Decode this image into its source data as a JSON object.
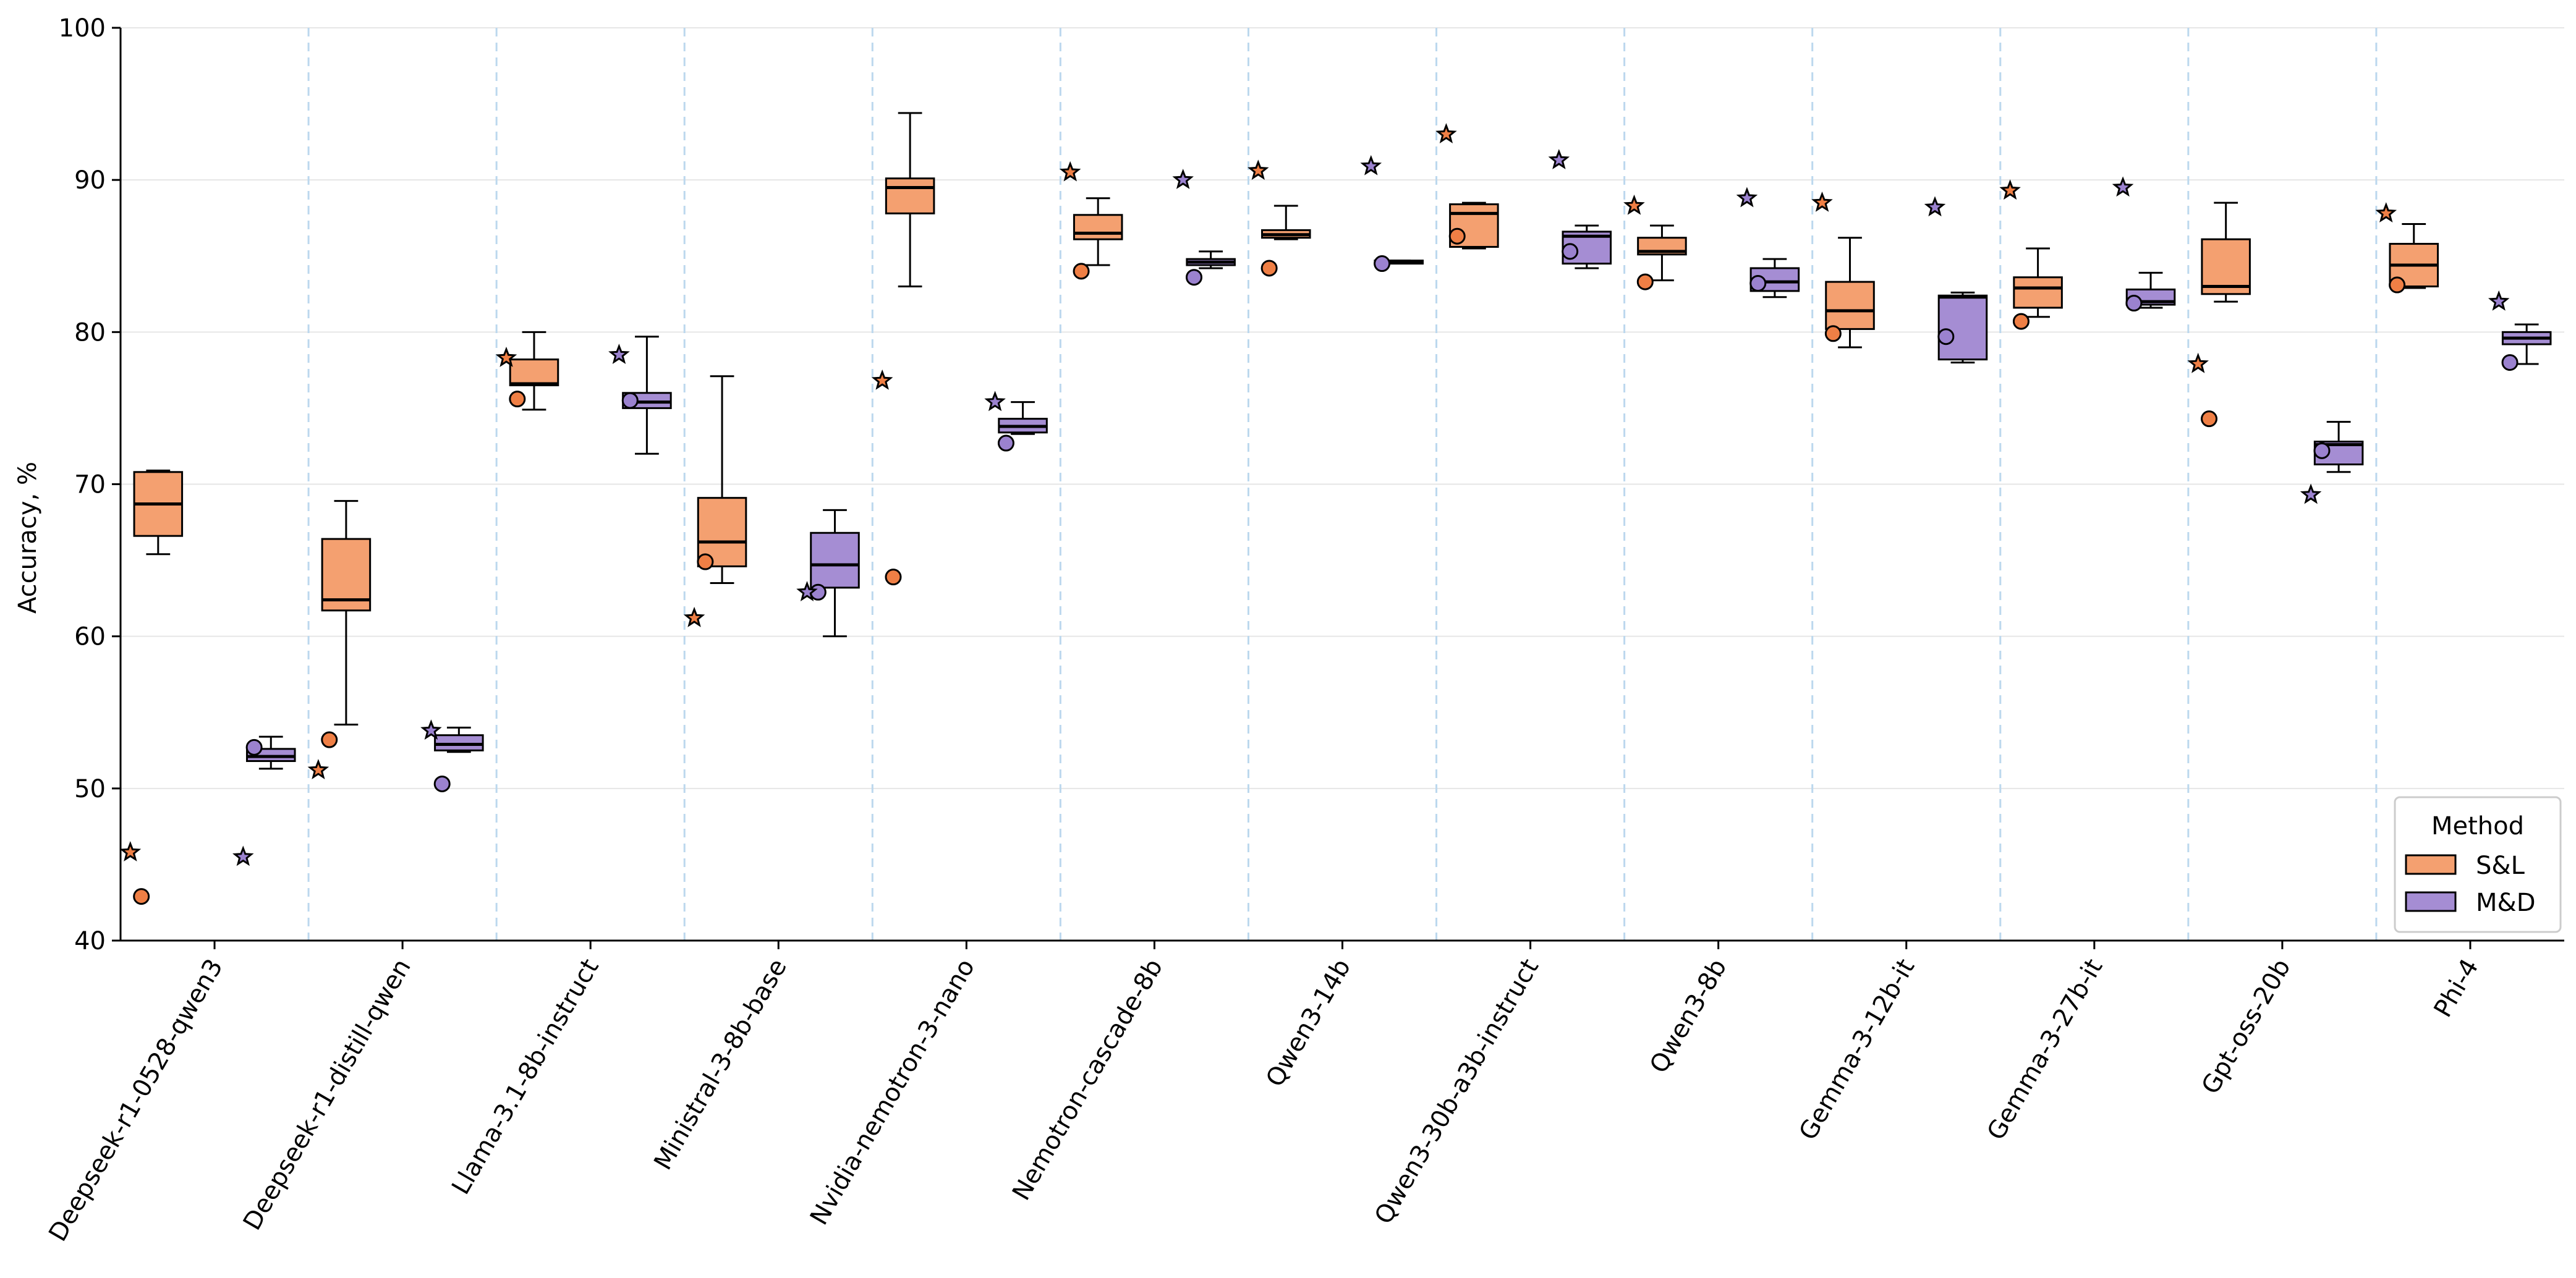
{
  "chart_data": {
    "type": "box",
    "ylabel": "Accuracy, %",
    "ylim": [
      40,
      100
    ],
    "yticks": [
      40,
      50,
      60,
      70,
      80,
      90,
      100
    ],
    "grid": "horizontal",
    "legend": {
      "title": "Method",
      "placement": "bottom-right",
      "entries": [
        "S&L",
        "M&D"
      ]
    },
    "colors": {
      "S&L": "#f4a070",
      "M&D": "#a58dd3",
      "S&L_marker": "#ef7f45",
      "M&D_marker": "#9b82cf",
      "separator": "#bcd8ee",
      "grid": "#e6e6e6"
    },
    "categories": [
      "Deepseek-r1-0528-qwen3",
      "Deepseek-r1-distill-qwen",
      "Llama-3.1-8b-instruct",
      "Ministral-3-8b-base",
      "Nvidia-nemotron-3-nano",
      "Nemotron-cascade-8b",
      "Qwen3-14b",
      "Qwen3-30b-a3b-instruct",
      "Qwen3-8b",
      "Gemma-3-12b-it",
      "Gemma-3-27b-it",
      "Gpt-oss-20b",
      "Phi-4"
    ],
    "series": [
      {
        "name": "S&L",
        "boxes": [
          {
            "whislo": 65.4,
            "q1": 66.6,
            "med": 68.7,
            "q3": 70.8,
            "whishi": 70.9,
            "circle": 42.9,
            "star": 45.8
          },
          {
            "whislo": 54.2,
            "q1": 61.7,
            "med": 62.4,
            "q3": 66.4,
            "whishi": 68.9,
            "circle": 53.2,
            "star": 51.2
          },
          {
            "whislo": 74.9,
            "q1": 76.5,
            "med": 76.6,
            "q3": 78.2,
            "whishi": 80.0,
            "circle": 75.6,
            "star": 78.3
          },
          {
            "whislo": 63.5,
            "q1": 64.6,
            "med": 66.2,
            "q3": 69.1,
            "whishi": 77.1,
            "circle": 64.9,
            "star": 61.2
          },
          {
            "whislo": 83.0,
            "q1": 87.8,
            "med": 89.5,
            "q3": 90.1,
            "whishi": 94.4,
            "circle": 63.9,
            "star": 76.8
          },
          {
            "whislo": 84.4,
            "q1": 86.1,
            "med": 86.5,
            "q3": 87.7,
            "whishi": 88.8,
            "circle": 84.0,
            "star": 90.5
          },
          {
            "whislo": 86.1,
            "q1": 86.2,
            "med": 86.4,
            "q3": 86.7,
            "whishi": 88.3,
            "circle": 84.2,
            "star": 90.6
          },
          {
            "whislo": 85.5,
            "q1": 85.6,
            "med": 87.8,
            "q3": 88.4,
            "whishi": 88.5,
            "circle": 86.3,
            "star": 93.0
          },
          {
            "whislo": 83.4,
            "q1": 85.1,
            "med": 85.3,
            "q3": 86.2,
            "whishi": 87.0,
            "circle": 83.3,
            "star": 88.3
          },
          {
            "whislo": 79.0,
            "q1": 80.2,
            "med": 81.4,
            "q3": 83.3,
            "whishi": 86.2,
            "circle": 79.9,
            "star": 88.5
          },
          {
            "whislo": 81.0,
            "q1": 81.6,
            "med": 82.9,
            "q3": 83.6,
            "whishi": 85.5,
            "circle": 80.7,
            "star": 89.3
          },
          {
            "whislo": 82.0,
            "q1": 82.5,
            "med": 83.0,
            "q3": 86.1,
            "whishi": 88.5,
            "circle": 74.3,
            "star": 77.9
          },
          {
            "whislo": 82.9,
            "q1": 83.0,
            "med": 84.4,
            "q3": 85.8,
            "whishi": 87.1,
            "circle": 83.1,
            "star": 87.8
          }
        ]
      },
      {
        "name": "M&D",
        "boxes": [
          {
            "whislo": 51.3,
            "q1": 51.8,
            "med": 52.1,
            "q3": 52.6,
            "whishi": 53.4,
            "circle": 52.7,
            "star": 45.5
          },
          {
            "whislo": 52.4,
            "q1": 52.5,
            "med": 52.9,
            "q3": 53.5,
            "whishi": 54.0,
            "circle": 50.3,
            "star": 53.8
          },
          {
            "whislo": 72.0,
            "q1": 75.0,
            "med": 75.4,
            "q3": 76.0,
            "whishi": 79.7,
            "circle": 75.5,
            "star": 78.5
          },
          {
            "whislo": 60.0,
            "q1": 63.2,
            "med": 64.7,
            "q3": 66.8,
            "whishi": 68.3,
            "circle": 62.9,
            "star": 62.9
          },
          {
            "whislo": 73.3,
            "q1": 73.4,
            "med": 73.8,
            "q3": 74.3,
            "whishi": 75.4,
            "circle": 72.7,
            "star": 75.4
          },
          {
            "whislo": 84.2,
            "q1": 84.4,
            "med": 84.6,
            "q3": 84.8,
            "whishi": 85.3,
            "circle": 83.6,
            "star": 90.0
          },
          {
            "whislo": 84.5,
            "q1": 84.5,
            "med": 84.6,
            "q3": 84.7,
            "whishi": 84.7,
            "circle": 84.5,
            "star": 90.9
          },
          {
            "whislo": 84.2,
            "q1": 84.5,
            "med": 86.3,
            "q3": 86.6,
            "whishi": 87.0,
            "circle": 85.3,
            "star": 91.3
          },
          {
            "whislo": 82.3,
            "q1": 82.7,
            "med": 83.3,
            "q3": 84.2,
            "whishi": 84.8,
            "circle": 83.2,
            "star": 88.8
          },
          {
            "whislo": 78.0,
            "q1": 78.2,
            "med": 82.3,
            "q3": 82.4,
            "whishi": 82.6,
            "circle": 79.7,
            "star": 88.2
          },
          {
            "whislo": 81.6,
            "q1": 81.8,
            "med": 82.0,
            "q3": 82.8,
            "whishi": 83.9,
            "circle": 81.9,
            "star": 89.5
          },
          {
            "whislo": 70.8,
            "q1": 71.3,
            "med": 72.6,
            "q3": 72.8,
            "whishi": 74.1,
            "circle": 72.2,
            "star": 69.3
          },
          {
            "whislo": 77.9,
            "q1": 79.2,
            "med": 79.6,
            "q3": 80.0,
            "whishi": 80.5,
            "circle": 78.0,
            "star": 82.0
          }
        ]
      }
    ]
  }
}
